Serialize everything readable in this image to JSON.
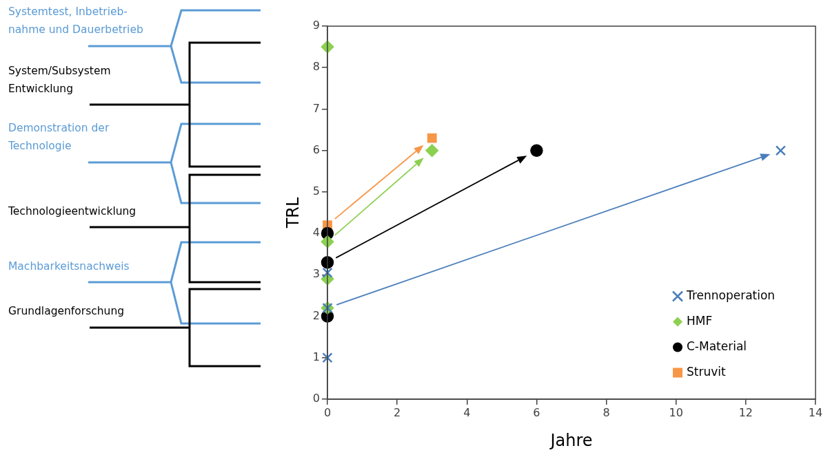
{
  "chart_data": {
    "type": "scatter",
    "xlabel": "Jahre",
    "ylabel": "TRL",
    "xlim": [
      0,
      14
    ],
    "xticks": [
      0,
      2,
      4,
      6,
      8,
      10,
      12,
      14
    ],
    "ylim": [
      0,
      9
    ],
    "yticks": [
      0,
      1,
      2,
      3,
      4,
      5,
      6,
      7,
      8,
      9
    ],
    "grid": false,
    "legend": "bottom right",
    "annotations": [
      "Systemtest, Inbetrieb-\nnahme und Dauerbetrieb",
      "System/Subsystem Entwicklung",
      "Demonstration der Technologie",
      "Technologieentwicklung",
      "Machbarkeitsnachweis",
      "Grundlagenforschung"
    ],
    "series": [
      {
        "name": "Trennoperation",
        "color": "#4a7ebb",
        "marker": "cross",
        "x": [
          0,
          0,
          0,
          13
        ],
        "values": [
          1,
          3.05,
          2.2,
          6
        ]
      },
      {
        "name": "HMF",
        "color": "#8cd050",
        "marker": "diamond",
        "x": [
          0,
          0,
          0,
          0,
          3
        ],
        "values": [
          8.5,
          2.9,
          2.2,
          3.8,
          6
        ]
      },
      {
        "name": "C-Material",
        "color": "#000000",
        "marker": "circle",
        "x": [
          0,
          0,
          0,
          6
        ],
        "values": [
          2,
          4,
          3.3,
          6
        ]
      },
      {
        "name": "Struvit",
        "color": "#f79646",
        "marker": "square",
        "x": [
          0,
          3
        ],
        "values": [
          4.2,
          6.3
        ]
      }
    ]
  }
}
